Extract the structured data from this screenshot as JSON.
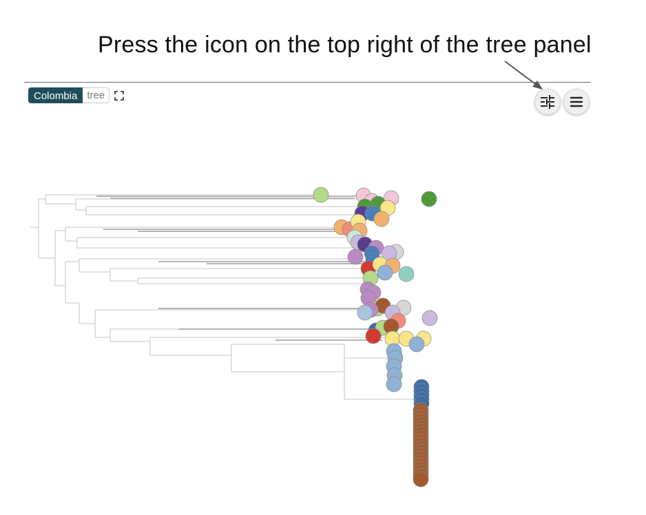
{
  "annotation": {
    "instruction": "Press the icon on the top right of the tree panel"
  },
  "panel": {
    "dataset_label": "Colombia",
    "view_label": "tree",
    "icons": {
      "expand": "expand-icon",
      "settings": "sliders-icon",
      "menu": "hamburger-menu-icon"
    }
  },
  "tree": {
    "branch_color": "#cfcfcf",
    "highlight_branch_color": "#b3b3b3",
    "tip_colors": {
      "green_light": "#b4d987",
      "green_dark": "#4f9a3b",
      "pink": "#f3c6d9",
      "yellow": "#f7e58a",
      "purple_dark": "#5a3e8e",
      "blue": "#4a7fb8",
      "orange": "#f2b06f",
      "salmon": "#f08b7a",
      "lavender": "#c9b9de",
      "teal": "#8fcfc0",
      "red": "#d33a32",
      "grey": "#d6d6d6",
      "mauve": "#b98bc2",
      "light_blue": "#a8c3e0",
      "steel_blue": "#8fb1d6",
      "dark_blue": "#3d6ea8",
      "brown": "#a25a2e",
      "mint": "#c9ead8"
    }
  }
}
